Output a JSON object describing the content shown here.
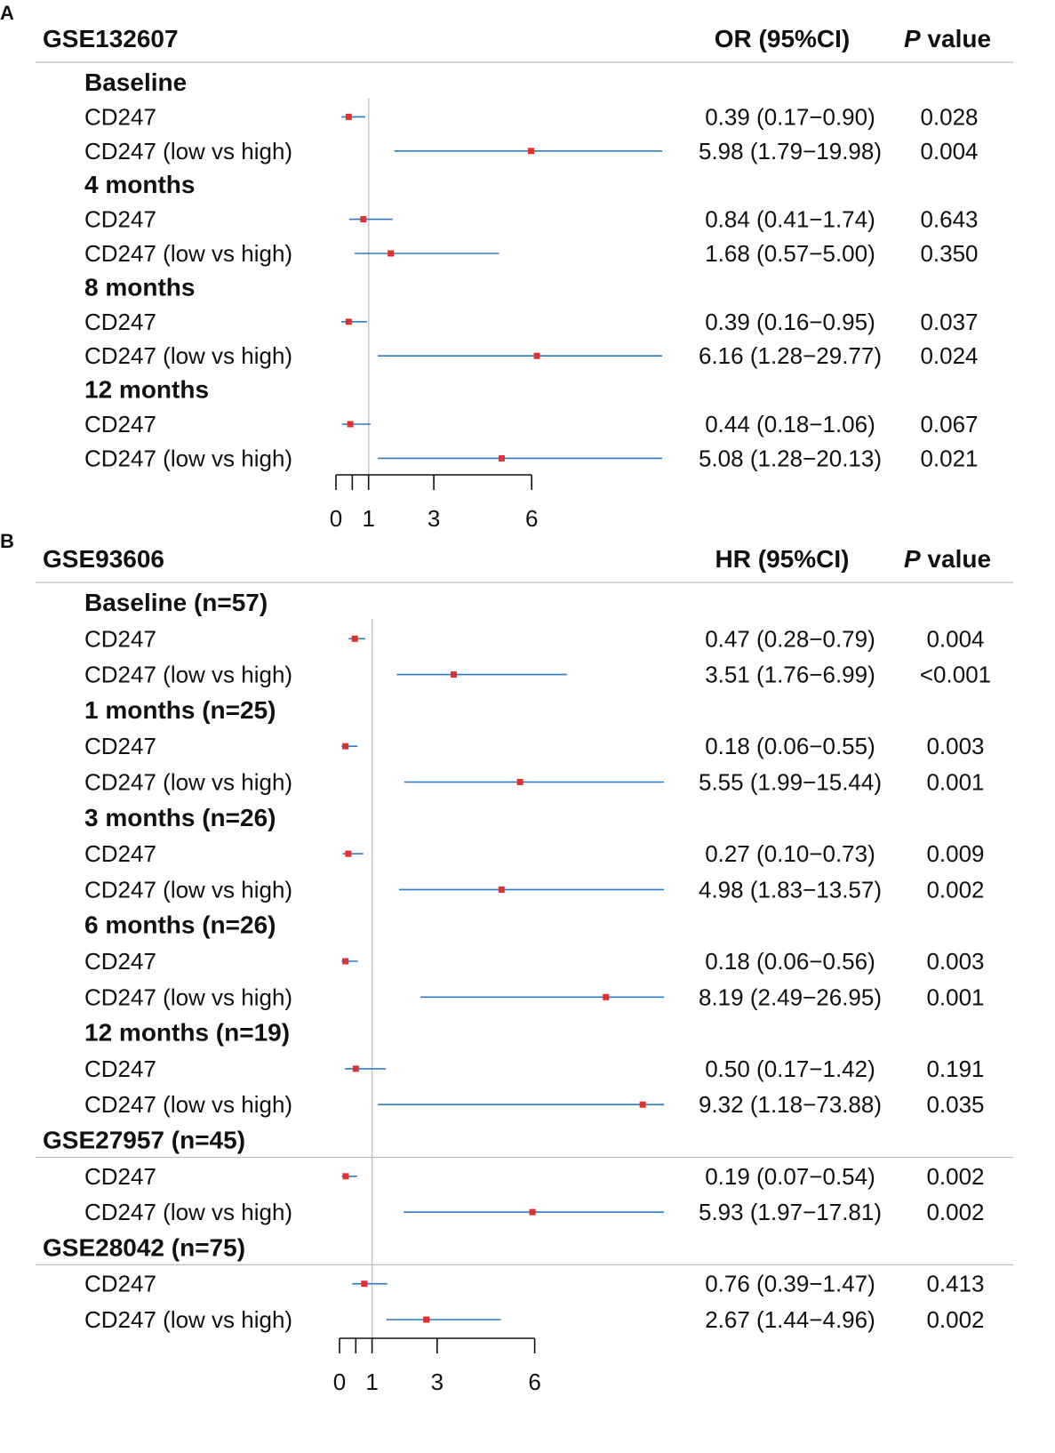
{
  "panels": [
    {
      "letter": "A",
      "dataset": "GSE132607",
      "stat_header": "OR (95%CI)",
      "p_header_italic": "P",
      "p_header_rest": " value",
      "groups": [
        {
          "label": "Baseline",
          "rows": [
            {
              "label": "CD247",
              "est": 0.39,
              "lo": 0.17,
              "hi": 0.9,
              "ci": "0.39 (0.17−0.90)",
              "p": "0.028"
            },
            {
              "label": "CD247 (low vs high)",
              "est": 5.98,
              "lo": 1.79,
              "hi": 19.98,
              "ci": "5.98 (1.79−19.98)",
              "p": "0.004",
              "clip": true
            }
          ]
        },
        {
          "label": "4 months",
          "rows": [
            {
              "label": "CD247",
              "est": 0.84,
              "lo": 0.41,
              "hi": 1.74,
              "ci": "0.84 (0.41−1.74)",
              "p": "0.643"
            },
            {
              "label": "CD247 (low vs high)",
              "est": 1.68,
              "lo": 0.57,
              "hi": 5.0,
              "ci": "1.68 (0.57−5.00)",
              "p": "0.350"
            }
          ]
        },
        {
          "label": "8 months",
          "rows": [
            {
              "label": "CD247",
              "est": 0.39,
              "lo": 0.16,
              "hi": 0.95,
              "ci": "0.39 (0.16−0.95)",
              "p": "0.037"
            },
            {
              "label": "CD247 (low vs high)",
              "est": 6.16,
              "lo": 1.28,
              "hi": 29.77,
              "ci": "6.16 (1.28−29.77)",
              "p": "0.024",
              "clip": true
            }
          ]
        },
        {
          "label": "12 months",
          "rows": [
            {
              "label": "CD247",
              "est": 0.44,
              "lo": 0.18,
              "hi": 1.06,
              "ci": "0.44 (0.18−1.06)",
              "p": "0.067"
            },
            {
              "label": "CD247 (low vs high)",
              "est": 5.08,
              "lo": 1.28,
              "hi": 20.13,
              "ci": "5.08 (1.28−20.13)",
              "p": "0.021",
              "clip": true
            }
          ]
        }
      ]
    },
    {
      "letter": "B",
      "dataset": "GSE93606",
      "stat_header": "HR (95%CI)",
      "p_header_italic": "P",
      "p_header_rest": " value",
      "groups": [
        {
          "label": "Baseline (n=57)",
          "rows": [
            {
              "label": "CD247",
              "est": 0.47,
              "lo": 0.28,
              "hi": 0.79,
              "ci": "0.47 (0.28−0.79)",
              "p": "0.004"
            },
            {
              "label": "CD247 (low vs high)",
              "est": 3.51,
              "lo": 1.76,
              "hi": 6.99,
              "ci": "3.51 (1.76−6.99)",
              "p": "<0.001"
            }
          ]
        },
        {
          "label": "1 months (n=25)",
          "rows": [
            {
              "label": "CD247",
              "est": 0.18,
              "lo": 0.06,
              "hi": 0.55,
              "ci": "0.18 (0.06−0.55)",
              "p": "0.003"
            },
            {
              "label": "CD247 (low vs high)",
              "est": 5.55,
              "lo": 1.99,
              "hi": 15.44,
              "ci": "5.55 (1.99−15.44)",
              "p": "0.001",
              "clip": true
            }
          ]
        },
        {
          "label": "3 months (n=26)",
          "rows": [
            {
              "label": "CD247",
              "est": 0.27,
              "lo": 0.1,
              "hi": 0.73,
              "ci": "0.27 (0.10−0.73)",
              "p": "0.009"
            },
            {
              "label": "CD247 (low vs high)",
              "est": 4.98,
              "lo": 1.83,
              "hi": 13.57,
              "ci": "4.98 (1.83−13.57)",
              "p": "0.002",
              "clip": true
            }
          ]
        },
        {
          "label": "6 months (n=26)",
          "rows": [
            {
              "label": "CD247",
              "est": 0.18,
              "lo": 0.06,
              "hi": 0.56,
              "ci": "0.18 (0.06−0.56)",
              "p": "0.003"
            },
            {
              "label": "CD247 (low vs high)",
              "est": 8.19,
              "lo": 2.49,
              "hi": 26.95,
              "ci": "8.19 (2.49−26.95)",
              "p": "0.001",
              "clip": true
            }
          ]
        },
        {
          "label": "12 months (n=19)",
          "rows": [
            {
              "label": "CD247",
              "est": 0.5,
              "lo": 0.17,
              "hi": 1.42,
              "ci": "0.50 (0.17−1.42)",
              "p": "0.191"
            },
            {
              "label": "CD247 (low vs high)",
              "est": 9.32,
              "lo": 1.18,
              "hi": 73.88,
              "ci": "9.32 (1.18−73.88)",
              "p": "0.035",
              "clip": true
            }
          ]
        },
        {
          "label": "GSE27957 (n=45)",
          "dataset_level": true,
          "rows": [
            {
              "label": "CD247",
              "est": 0.19,
              "lo": 0.07,
              "hi": 0.54,
              "ci": "0.19 (0.07−0.54)",
              "p": "0.002"
            },
            {
              "label": "CD247 (low vs high)",
              "est": 5.93,
              "lo": 1.97,
              "hi": 17.81,
              "ci": "5.93 (1.97−17.81)",
              "p": "0.002",
              "clip": true
            }
          ]
        },
        {
          "label": "GSE28042 (n=75)",
          "dataset_level": true,
          "rows": [
            {
              "label": "CD247",
              "est": 0.76,
              "lo": 0.39,
              "hi": 1.47,
              "ci": "0.76 (0.39−1.47)",
              "p": "0.413"
            },
            {
              "label": "CD247 (low vs high)",
              "est": 2.67,
              "lo": 1.44,
              "hi": 4.96,
              "ci": "2.67 (1.44−4.96)",
              "p": "0.002"
            }
          ]
        }
      ]
    }
  ],
  "chart_data": [
    {
      "type": "forest",
      "title": "GSE132607",
      "stat": "OR (95%CI)",
      "reference_line": 1,
      "xlim": [
        0,
        6
      ],
      "xticks": [
        0,
        0.5,
        1,
        3,
        6
      ],
      "xtick_labels": [
        "0",
        "",
        "1",
        "3",
        "6"
      ]
    },
    {
      "type": "forest",
      "title": "GSE93606",
      "stat": "HR (95%CI)",
      "reference_line": 1,
      "xlim": [
        0,
        6
      ],
      "xticks": [
        0,
        0.5,
        1,
        3,
        6
      ],
      "xtick_labels": [
        "0",
        "",
        "1",
        "3",
        "6"
      ]
    }
  ],
  "colors": {
    "ci_line": "#2f78c4",
    "point": "#e03030",
    "ref_line": "#c8c8c8",
    "divider": "#bdbdbd",
    "text": "#111111"
  }
}
